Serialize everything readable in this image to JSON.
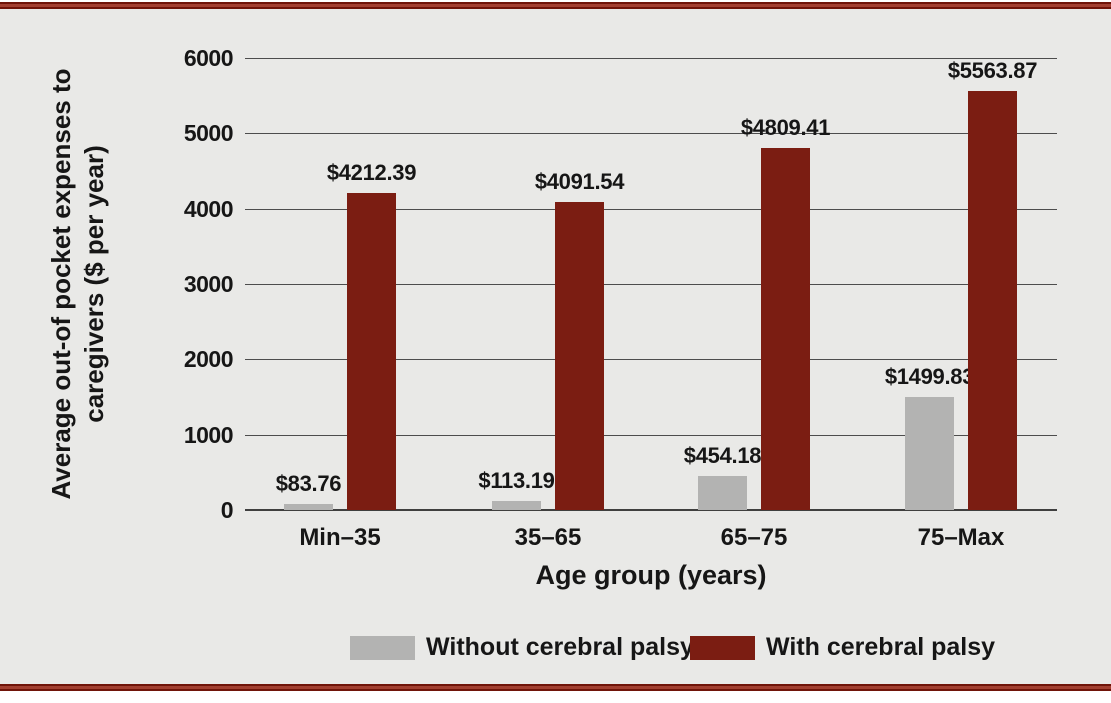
{
  "figure": {
    "background": "#e9e9e7",
    "rule_color": "#7a1a10",
    "gridline_color": "#4d4d4d",
    "text_color": "#161616"
  },
  "chart_data": {
    "type": "bar",
    "title": "",
    "xlabel": "Age group (years)",
    "ylabel": "Average out-of pocket expenses to caregivers ($ per year)",
    "ylabel_line1": "Average out-of pocket expenses to",
    "ylabel_line2": "caregivers ($ per year)",
    "categories": [
      "Min–35",
      "35–65",
      "65–75",
      "75–Max"
    ],
    "series": [
      {
        "name": "Without cerebral palsy",
        "color": "#b3b3b2",
        "values": [
          83.76,
          113.19,
          454.18,
          1499.83
        ],
        "labels": [
          "$83.76",
          "$113.19",
          "$454.18",
          "$1499.83"
        ]
      },
      {
        "name": "With cerebral palsy",
        "color": "#7b1d12",
        "values": [
          4212.39,
          4091.54,
          4809.41,
          5563.87
        ],
        "labels": [
          "$4212.39",
          "$4091.54",
          "$4809.41",
          "$5563.87"
        ]
      }
    ],
    "ylim": [
      0,
      6000
    ],
    "yticks": [
      0,
      1000,
      2000,
      3000,
      4000,
      5000,
      6000
    ],
    "grid": true,
    "legend_position": "bottom"
  }
}
